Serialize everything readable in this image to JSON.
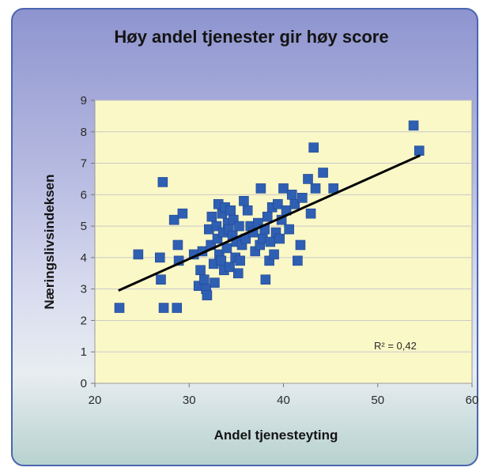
{
  "chart_data": {
    "type": "scatter",
    "title": "Høy andel tjenester gir høy score",
    "xlabel": "Andel tjenesteyting",
    "ylabel": "Næringslivsindeksen",
    "xlim": [
      20,
      60
    ],
    "ylim": [
      0,
      9
    ],
    "xticks": [
      "20",
      "30",
      "40",
      "50",
      "60"
    ],
    "yticks": [
      "0",
      "1",
      "2",
      "3",
      "4",
      "5",
      "6",
      "7",
      "8",
      "9"
    ],
    "grid": true,
    "marker_color": "#2f5fb3",
    "trendline_color": "#000000",
    "plot_background": "#fbf8c8",
    "trendline": {
      "x": [
        22.5,
        54.5
      ],
      "y": [
        2.95,
        7.25
      ]
    },
    "annotation": "R² = 0,42",
    "points": [
      [
        22.6,
        2.4
      ],
      [
        24.6,
        4.1
      ],
      [
        26.9,
        4.0
      ],
      [
        27.0,
        3.3
      ],
      [
        27.2,
        6.4
      ],
      [
        27.3,
        2.4
      ],
      [
        28.4,
        5.2
      ],
      [
        28.7,
        2.4
      ],
      [
        28.8,
        4.4
      ],
      [
        28.9,
        3.9
      ],
      [
        29.3,
        5.4
      ],
      [
        30.5,
        4.1
      ],
      [
        31.0,
        3.1
      ],
      [
        31.2,
        3.6
      ],
      [
        31.4,
        4.2
      ],
      [
        31.6,
        3.3
      ],
      [
        31.8,
        3.0
      ],
      [
        31.9,
        2.8
      ],
      [
        32.1,
        4.9
      ],
      [
        32.3,
        4.4
      ],
      [
        32.4,
        5.3
      ],
      [
        32.6,
        3.8
      ],
      [
        32.7,
        3.2
      ],
      [
        32.9,
        5.0
      ],
      [
        33.0,
        4.6
      ],
      [
        33.1,
        5.7
      ],
      [
        33.2,
        4.1
      ],
      [
        33.4,
        3.9
      ],
      [
        33.5,
        5.4
      ],
      [
        33.6,
        4.8
      ],
      [
        33.7,
        3.6
      ],
      [
        33.8,
        5.6
      ],
      [
        34.0,
        4.3
      ],
      [
        34.1,
        5.1
      ],
      [
        34.2,
        4.9
      ],
      [
        34.3,
        3.7
      ],
      [
        34.4,
        5.5
      ],
      [
        34.6,
        4.7
      ],
      [
        34.7,
        5.2
      ],
      [
        34.9,
        4.0
      ],
      [
        35.0,
        4.5
      ],
      [
        35.2,
        3.5
      ],
      [
        35.3,
        5.0
      ],
      [
        35.4,
        3.9
      ],
      [
        35.6,
        4.4
      ],
      [
        35.8,
        5.8
      ],
      [
        36.0,
        4.6
      ],
      [
        36.2,
        5.5
      ],
      [
        36.5,
        5.0
      ],
      [
        36.8,
        4.8
      ],
      [
        37.0,
        4.2
      ],
      [
        37.3,
        5.1
      ],
      [
        37.5,
        4.4
      ],
      [
        37.6,
        6.2
      ],
      [
        37.8,
        4.6
      ],
      [
        38.0,
        4.9
      ],
      [
        38.1,
        3.3
      ],
      [
        38.3,
        5.3
      ],
      [
        38.5,
        3.9
      ],
      [
        38.6,
        4.5
      ],
      [
        38.8,
        5.6
      ],
      [
        39.0,
        4.1
      ],
      [
        39.2,
        4.8
      ],
      [
        39.4,
        5.7
      ],
      [
        39.6,
        4.6
      ],
      [
        39.8,
        5.2
      ],
      [
        40.0,
        6.2
      ],
      [
        40.3,
        5.5
      ],
      [
        40.6,
        4.9
      ],
      [
        40.9,
        6.0
      ],
      [
        41.2,
        5.7
      ],
      [
        41.5,
        3.9
      ],
      [
        41.8,
        4.4
      ],
      [
        42.0,
        5.9
      ],
      [
        42.6,
        6.5
      ],
      [
        42.9,
        5.4
      ],
      [
        43.2,
        7.5
      ],
      [
        43.4,
        6.2
      ],
      [
        44.2,
        6.7
      ],
      [
        45.3,
        6.2
      ],
      [
        53.8,
        8.2
      ],
      [
        54.4,
        7.4
      ]
    ]
  }
}
